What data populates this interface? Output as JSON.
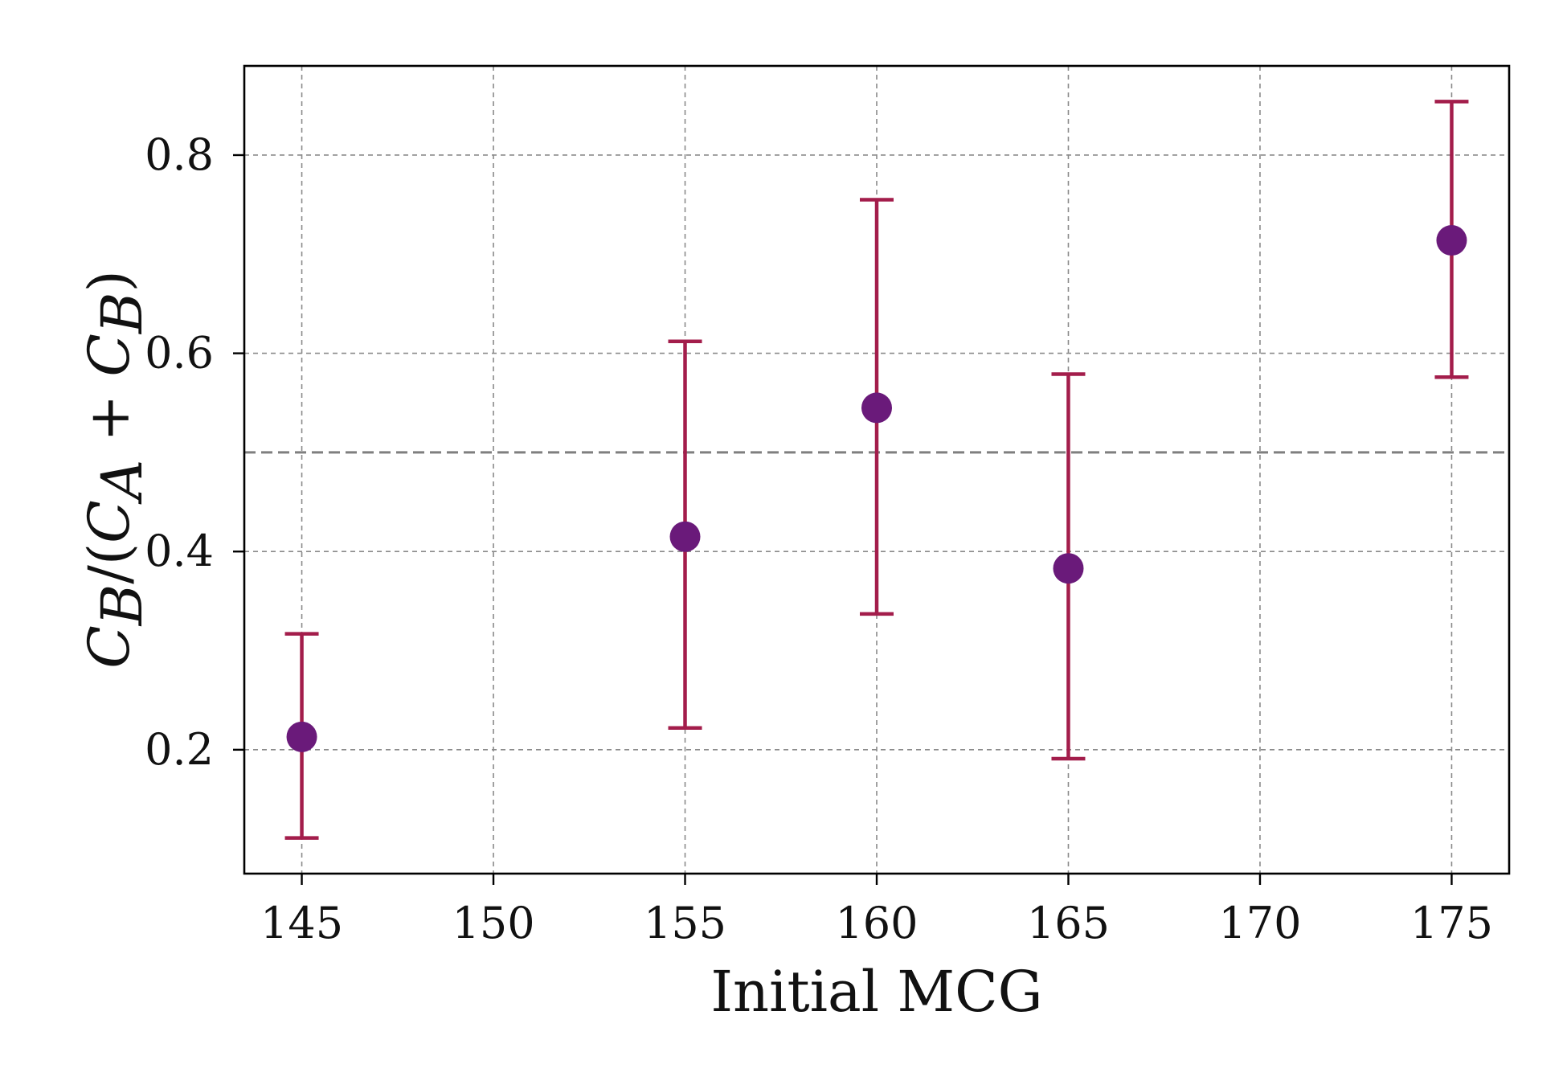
{
  "chart_data": {
    "type": "scatter",
    "title": "",
    "xlabel": "Initial MCG",
    "ylabel": "C_B/(C_A + C_B)",
    "ylabel_parts": {
      "c1": "C",
      "s1": "B",
      "slash": "/(",
      "c2": "C",
      "s2": "A",
      "plus": " + ",
      "c3": "C",
      "s3": "B",
      "close": ")"
    },
    "xlim": [
      143.5,
      176.5
    ],
    "ylim": [
      0.075,
      0.89
    ],
    "xticks": [
      145,
      150,
      155,
      160,
      165,
      170,
      175
    ],
    "yticks": [
      0.2,
      0.4,
      0.6,
      0.8
    ],
    "xtick_labels": [
      "145",
      "150",
      "155",
      "160",
      "165",
      "170",
      "175"
    ],
    "ytick_labels": [
      "0.2",
      "0.4",
      "0.6",
      "0.8"
    ],
    "grid": true,
    "reference_line_y": 0.5,
    "series": [
      {
        "x": [
          145,
          155,
          160,
          165,
          175
        ],
        "y": [
          0.213,
          0.415,
          0.545,
          0.383,
          0.714
        ],
        "err_low": [
          0.111,
          0.222,
          0.337,
          0.191,
          0.576
        ],
        "err_high": [
          0.317,
          0.612,
          0.755,
          0.579,
          0.854
        ]
      }
    ],
    "colors": {
      "marker": "#6a1a7a",
      "errorbar": "#a31d4b"
    }
  }
}
